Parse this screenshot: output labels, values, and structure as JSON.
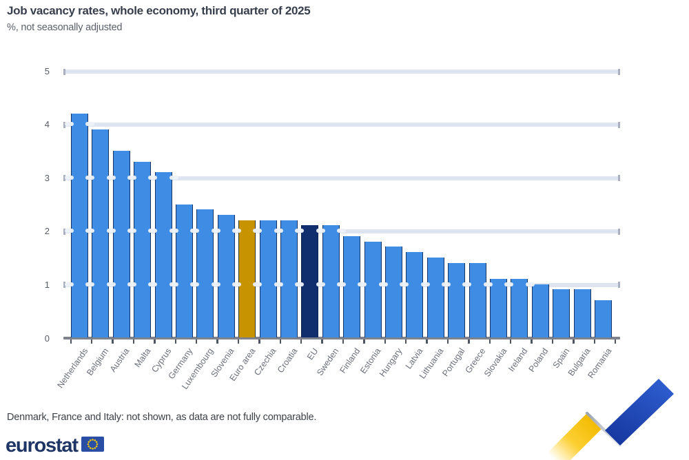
{
  "title": "Job vacancy rates, whole economy, third quarter of 2025",
  "subtitle": "%, not seasonally adjusted",
  "footnote": "Denmark, France and Italy: not shown, as data are not fully comparable.",
  "logo": {
    "text": "eurostat",
    "flag_icon": "eu-flag-icon"
  },
  "decoration": {
    "ribbon_icon": "eurostat-ribbon-icon",
    "colors": {
      "yellow": "#f2ba00",
      "silver": "#c3c9d4",
      "blue": "#2353c4"
    }
  },
  "chart_data": {
    "type": "bar",
    "title": "Job vacancy rates, whole economy, third quarter of 2025",
    "subtitle": "%, not seasonally adjusted",
    "xlabel": "",
    "ylabel": "%",
    "ylim": [
      0,
      5
    ],
    "yticks": [
      0,
      1,
      2,
      3,
      4,
      5
    ],
    "grid": "horizontal",
    "legend": "none",
    "categories": [
      "Netherlands",
      "Belgium",
      "Austria",
      "Malta",
      "Cyprus",
      "Germany",
      "Luxembourg",
      "Slovenia",
      "Euro area",
      "Czechia",
      "Croatia",
      "EU",
      "Sweden",
      "Finland",
      "Estonia",
      "Hungary",
      "Latvia",
      "Lithuania",
      "Portugal",
      "Greece",
      "Slovakia",
      "Ireland",
      "Poland",
      "Spain",
      "Bulgaria",
      "Romania"
    ],
    "values": [
      4.2,
      3.9,
      3.5,
      3.3,
      3.1,
      2.5,
      2.4,
      2.3,
      2.2,
      2.2,
      2.2,
      2.1,
      2.1,
      1.9,
      1.8,
      1.7,
      1.6,
      1.5,
      1.4,
      1.4,
      1.1,
      1.1,
      1.0,
      0.9,
      0.9,
      0.7
    ],
    "bar_roles": [
      "country",
      "country",
      "country",
      "country",
      "country",
      "country",
      "country",
      "country",
      "euro-area",
      "country",
      "country",
      "eu",
      "country",
      "country",
      "country",
      "country",
      "country",
      "country",
      "country",
      "country",
      "country",
      "country",
      "country",
      "country",
      "country",
      "country"
    ],
    "colors": {
      "country": "#3e8ce3",
      "euro-area": "#c79400",
      "eu": "#102e6e",
      "gridline": "#dee4f0",
      "axis": "#7d828c",
      "tick_label": "#565b64",
      "category_label": "#6a6f79"
    }
  }
}
